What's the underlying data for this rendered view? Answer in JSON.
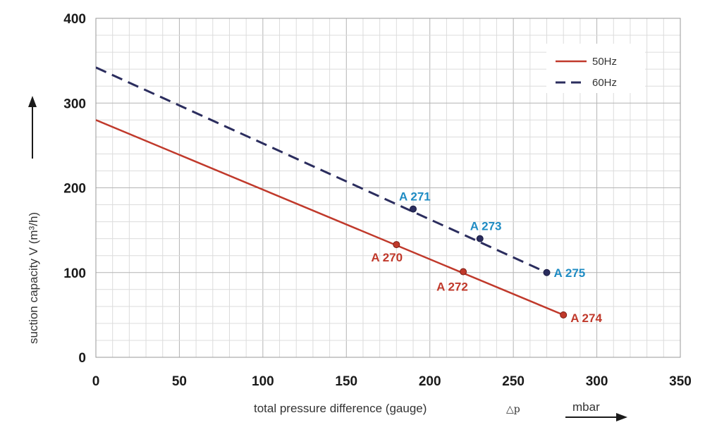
{
  "chart_data": {
    "type": "line",
    "xlabel": "total pressure difference (gauge)",
    "xlabel_symbol": "△p",
    "x_unit": "mbar",
    "ylabel": "suction capacity V (m³/h)",
    "xlim": [
      0,
      350
    ],
    "ylim": [
      0,
      400
    ],
    "x_ticks": [
      0,
      50,
      100,
      150,
      200,
      250,
      300,
      350
    ],
    "y_ticks": [
      0,
      100,
      200,
      300,
      400
    ],
    "grid": true,
    "legend_position": "top-right",
    "series": [
      {
        "name": "50Hz",
        "style": "solid",
        "color": "#c0392b",
        "points": [
          [
            0,
            280
          ],
          [
            280,
            50
          ]
        ],
        "markers": [
          {
            "label": "A 270",
            "x": 180,
            "y": 133
          },
          {
            "label": "A 272",
            "x": 220,
            "y": 101
          },
          {
            "label": "A 274",
            "x": 280,
            "y": 50
          }
        ]
      },
      {
        "name": "60Hz",
        "style": "dashed",
        "color": "#2b2d5e",
        "points": [
          [
            0,
            342
          ],
          [
            270,
            100
          ]
        ],
        "markers": [
          {
            "label": "A 271",
            "x": 190,
            "y": 175
          },
          {
            "label": "A 273",
            "x": 230,
            "y": 140
          },
          {
            "label": "A 275",
            "x": 270,
            "y": 100
          }
        ]
      }
    ],
    "label_colors": {
      "50Hz": "#c0392b",
      "60Hz": "#1e8bc3"
    }
  }
}
